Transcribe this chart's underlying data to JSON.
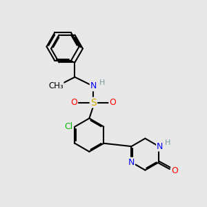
{
  "bg_color": "#e8e8e8",
  "bond_color": "#000000",
  "bond_width": 1.5,
  "dbo": 0.055,
  "atom_colors": {
    "N": "#0000ff",
    "O": "#ff0000",
    "S": "#ccaa00",
    "Cl": "#00bb00",
    "H": "#7a9a9a",
    "C": "#000000"
  },
  "fs": 9
}
